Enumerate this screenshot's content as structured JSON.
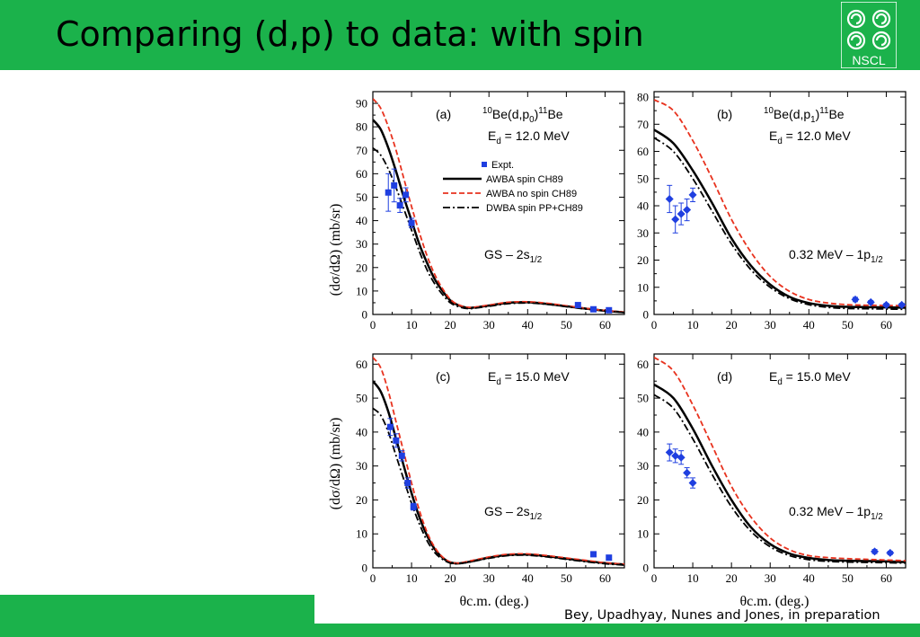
{
  "slide": {
    "title": "Comparing (d,p) to data: with spin",
    "logo_text": "NSCL",
    "citation": "Bey, Upadhyay, Nunes and Jones, in preparation",
    "accent_color": "#1bb24b"
  },
  "figure": {
    "ylabel": "(dσ/dΩ) (mb/sr)",
    "xlabel": "θc.m. (deg.)",
    "legend": [
      {
        "label": "Expt.",
        "style": "blue-square",
        "color": "#1f3fe0"
      },
      {
        "label": "AWBA spin CH89",
        "style": "solid",
        "color": "#000000"
      },
      {
        "label": "AWBA no spin CH89",
        "style": "dashed",
        "color": "#e8321e"
      },
      {
        "label": "DWBA spin PP+CH89",
        "style": "dashdot",
        "color": "#000000"
      }
    ]
  },
  "chart_data": [
    {
      "type": "line",
      "panel": "(a)",
      "reaction": "10Be(d,p0)11Be",
      "energy": "Ed = 12.0 MeV",
      "state": "GS – 2s1/2",
      "xlim": [
        0,
        65
      ],
      "ylim": [
        0,
        95
      ],
      "xticks": [
        0,
        10,
        20,
        30,
        40,
        50,
        60
      ],
      "yticks": [
        0,
        10,
        20,
        30,
        40,
        50,
        60,
        70,
        80,
        90
      ],
      "series": [
        {
          "name": "AWBA spin CH89",
          "style": "solid",
          "x": [
            0,
            2,
            4,
            6,
            8,
            10,
            12,
            14,
            16,
            18,
            20,
            22,
            25,
            30,
            35,
            40,
            45,
            50,
            55,
            60,
            65
          ],
          "y": [
            83,
            79,
            71,
            61,
            50,
            40,
            30,
            22,
            15,
            10,
            6,
            4,
            2.8,
            3.8,
            5,
            5.2,
            4.5,
            3.5,
            2.5,
            1.6,
            0.9
          ]
        },
        {
          "name": "AWBA no spin CH89",
          "style": "dashed",
          "x": [
            0,
            2,
            4,
            6,
            8,
            10,
            12,
            14,
            16,
            18,
            20,
            22,
            25,
            30,
            35,
            40,
            45,
            50,
            55,
            60,
            65
          ],
          "y": [
            92,
            88,
            80,
            70,
            58,
            46,
            35,
            25,
            17,
            11,
            6.5,
            4.2,
            3,
            4,
            5.2,
            5.4,
            4.8,
            3.7,
            2.6,
            1.7,
            1
          ]
        },
        {
          "name": "DWBA spin PP+CH89",
          "style": "dashdot",
          "x": [
            0,
            2,
            4,
            6,
            8,
            10,
            12,
            14,
            16,
            18,
            20,
            22,
            25,
            30,
            35,
            40,
            45,
            50,
            55,
            60,
            65
          ],
          "y": [
            71,
            68,
            62,
            54,
            45,
            36,
            27,
            19,
            13,
            8.5,
            5,
            3.4,
            2.5,
            3.5,
            4.6,
            4.9,
            4.3,
            3.3,
            2.3,
            1.5,
            0.8
          ]
        },
        {
          "name": "Expt.",
          "style": "points",
          "x": [
            4,
            5.5,
            7,
            8.5,
            10,
            53,
            57,
            61
          ],
          "y": [
            52,
            55,
            46.5,
            51,
            39,
            4,
            2.2,
            1.8
          ],
          "err": [
            8,
            7,
            3,
            3,
            2,
            0.8,
            0.6,
            0.6
          ]
        }
      ]
    },
    {
      "type": "line",
      "panel": "(b)",
      "reaction": "10Be(d,p1)11Be",
      "energy": "Ed = 12.0 MeV",
      "state": "0.32 MeV – 1p1/2",
      "xlim": [
        0,
        65
      ],
      "ylim": [
        0,
        82
      ],
      "xticks": [
        0,
        10,
        20,
        30,
        40,
        50,
        60
      ],
      "yticks": [
        0,
        10,
        20,
        30,
        40,
        50,
        60,
        70,
        80
      ],
      "series": [
        {
          "name": "AWBA spin CH89",
          "style": "solid",
          "x": [
            0,
            5,
            10,
            15,
            20,
            25,
            30,
            35,
            40,
            45,
            50,
            55,
            60,
            65
          ],
          "y": [
            68,
            63,
            53,
            41,
            28,
            18,
            11,
            6.5,
            4.2,
            3.2,
            2.8,
            2.7,
            2.6,
            2.5
          ]
        },
        {
          "name": "AWBA no spin CH89",
          "style": "dashed",
          "x": [
            0,
            5,
            10,
            15,
            20,
            25,
            30,
            35,
            40,
            45,
            50,
            55,
            60,
            65
          ],
          "y": [
            79,
            75,
            64,
            50,
            35,
            23,
            14,
            8.5,
            5.5,
            4.2,
            3.6,
            3.4,
            3.3,
            3.2
          ]
        },
        {
          "name": "DWBA spin PP+CH89",
          "style": "dashdot",
          "x": [
            0,
            5,
            10,
            15,
            20,
            25,
            30,
            35,
            40,
            45,
            50,
            55,
            60,
            65
          ],
          "y": [
            65,
            60,
            50,
            38,
            26,
            16.5,
            10,
            5.8,
            3.6,
            2.6,
            2.2,
            2.1,
            2.0,
            1.9
          ]
        },
        {
          "name": "Expt.",
          "style": "points",
          "x": [
            4,
            5.5,
            7,
            8.5,
            10,
            52,
            56,
            60,
            64
          ],
          "y": [
            42.5,
            35,
            37,
            38.5,
            44,
            5.5,
            4.5,
            3.5,
            3.5
          ],
          "err": [
            5,
            5,
            4,
            4,
            2.5,
            0.8,
            0.6,
            0.6,
            0.6
          ]
        }
      ]
    },
    {
      "type": "line",
      "panel": "(c)",
      "energy": "Ed = 15.0 MeV",
      "state": "GS – 2s1/2",
      "xlim": [
        0,
        65
      ],
      "ylim": [
        0,
        63
      ],
      "xticks": [
        0,
        10,
        20,
        30,
        40,
        50,
        60
      ],
      "yticks": [
        0,
        10,
        20,
        30,
        40,
        50,
        60
      ],
      "series": [
        {
          "name": "AWBA spin CH89",
          "style": "solid",
          "x": [
            0,
            2,
            4,
            6,
            8,
            10,
            12,
            14,
            16,
            18,
            20,
            22,
            25,
            30,
            35,
            40,
            45,
            50,
            55,
            60,
            65
          ],
          "y": [
            55,
            52,
            46,
            38,
            30,
            22,
            15,
            9.5,
            5.5,
            3,
            1.6,
            1.3,
            1.8,
            3,
            3.8,
            3.9,
            3.4,
            2.7,
            2,
            1.4,
            1
          ]
        },
        {
          "name": "AWBA no spin CH89",
          "style": "dashed",
          "x": [
            0,
            2,
            4,
            6,
            8,
            10,
            12,
            14,
            16,
            18,
            20,
            22,
            25,
            30,
            35,
            40,
            45,
            50,
            55,
            60,
            65
          ],
          "y": [
            62,
            59,
            52,
            43,
            34,
            25,
            17,
            10.5,
            6,
            3.2,
            1.7,
            1.4,
            2,
            3.2,
            4,
            4.1,
            3.6,
            2.9,
            2.2,
            1.5,
            1.1
          ]
        },
        {
          "name": "DWBA spin PP+CH89",
          "style": "dashdot",
          "x": [
            0,
            2,
            4,
            6,
            8,
            10,
            12,
            14,
            16,
            18,
            20,
            22,
            25,
            30,
            35,
            40,
            45,
            50,
            55,
            60,
            65
          ],
          "y": [
            47,
            45,
            40,
            33,
            26,
            19,
            13,
            8,
            4.5,
            2.5,
            1.4,
            1.2,
            1.7,
            2.8,
            3.6,
            3.7,
            3.2,
            2.5,
            1.8,
            1.2,
            0.8
          ]
        },
        {
          "name": "Expt.",
          "style": "points",
          "x": [
            4.5,
            6,
            7.5,
            9,
            10.5,
            57,
            61
          ],
          "y": [
            41.5,
            37.5,
            33,
            25,
            18,
            4,
            3
          ],
          "err": [
            2.5,
            2,
            1.5,
            1.5,
            1,
            0.6,
            0.5
          ]
        }
      ]
    },
    {
      "type": "line",
      "panel": "(d)",
      "energy": "Ed = 15.0 MeV",
      "state": "0.32 MeV – 1p1/2",
      "xlim": [
        0,
        65
      ],
      "ylim": [
        0,
        63
      ],
      "xticks": [
        0,
        10,
        20,
        30,
        40,
        50,
        60
      ],
      "yticks": [
        0,
        10,
        20,
        30,
        40,
        50,
        60
      ],
      "series": [
        {
          "name": "AWBA spin CH89",
          "style": "solid",
          "x": [
            0,
            5,
            10,
            15,
            20,
            25,
            30,
            35,
            40,
            45,
            50,
            55,
            60,
            65
          ],
          "y": [
            54,
            50,
            41,
            30,
            20,
            12,
            7,
            4.2,
            2.9,
            2.3,
            2.1,
            2,
            1.9,
            1.7
          ]
        },
        {
          "name": "AWBA no spin CH89",
          "style": "dashed",
          "x": [
            0,
            5,
            10,
            15,
            20,
            25,
            30,
            35,
            40,
            45,
            50,
            55,
            60,
            65
          ],
          "y": [
            62,
            58,
            48,
            36,
            24,
            15,
            8.8,
            5.3,
            3.6,
            3,
            2.7,
            2.5,
            2.3,
            2.1
          ]
        },
        {
          "name": "DWBA spin PP+CH89",
          "style": "dashdot",
          "x": [
            0,
            5,
            10,
            15,
            20,
            25,
            30,
            35,
            40,
            45,
            50,
            55,
            60,
            65
          ],
          "y": [
            51,
            47,
            38,
            27.5,
            18,
            10.8,
            6.2,
            3.6,
            2.4,
            1.9,
            1.7,
            1.6,
            1.5,
            1.4
          ]
        },
        {
          "name": "Expt.",
          "style": "points",
          "x": [
            4,
            5.5,
            7,
            8.5,
            10,
            57,
            61
          ],
          "y": [
            34,
            33,
            32.5,
            28,
            25,
            4.8,
            4.4
          ],
          "err": [
            2.5,
            2,
            2,
            1.5,
            1.5,
            0.6,
            0.5
          ]
        }
      ]
    }
  ]
}
